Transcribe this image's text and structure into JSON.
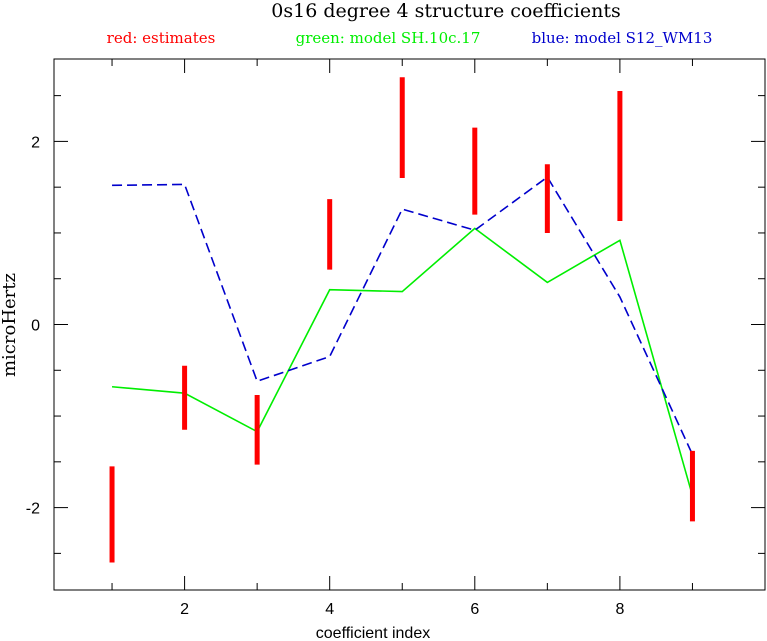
{
  "chart_data": {
    "type": "line",
    "title": "0s16 degree 4 structure coefficients",
    "xlabel": "coefficient index",
    "ylabel": "microHertz",
    "xlim": [
      0.2,
      10
    ],
    "ylim": [
      -2.9,
      2.9
    ],
    "x_major_ticks": [
      2,
      4,
      6,
      8
    ],
    "y_major_ticks": [
      -2,
      0,
      2
    ],
    "x_tick_labels": [
      "2",
      "4",
      "6",
      "8"
    ],
    "y_tick_labels": [
      "-2",
      "0",
      "2"
    ],
    "legend": [
      {
        "label": "red: estimates",
        "color": "#ff0000"
      },
      {
        "label": "green: model SH.10c.17",
        "color": "#00ee00"
      },
      {
        "label": "blue: model S12_WM13",
        "color": "#0000cc"
      }
    ],
    "estimates": {
      "color": "#ff0000",
      "style": "error-bar",
      "ranges": [
        {
          "x": 1,
          "low": -2.6,
          "high": -1.55
        },
        {
          "x": 2,
          "low": -1.15,
          "high": -0.45
        },
        {
          "x": 3,
          "low": -1.53,
          "high": -0.77
        },
        {
          "x": 4,
          "low": 0.6,
          "high": 1.37
        },
        {
          "x": 5,
          "low": 1.6,
          "high": 2.7
        },
        {
          "x": 6,
          "low": 1.2,
          "high": 2.15
        },
        {
          "x": 7,
          "low": 1.0,
          "high": 1.75
        },
        {
          "x": 8,
          "low": 1.13,
          "high": 2.55
        },
        {
          "x": 9,
          "low": -2.15,
          "high": -1.38
        }
      ]
    },
    "series": [
      {
        "name": "model SH.10c.17",
        "color": "#00ee00",
        "dash": "solid",
        "x": [
          1,
          2,
          3,
          4,
          5,
          6,
          7,
          8,
          9
        ],
        "values": [
          -0.68,
          -0.75,
          -1.17,
          0.38,
          0.36,
          1.05,
          0.46,
          0.92,
          -1.87
        ]
      },
      {
        "name": "model S12_WM13",
        "color": "#0000cc",
        "dash": "dashed",
        "x": [
          1,
          2,
          3,
          4,
          5,
          6,
          7,
          8,
          9
        ],
        "values": [
          1.52,
          1.53,
          -0.62,
          -0.35,
          1.26,
          1.03,
          1.61,
          0.3,
          -1.42
        ]
      }
    ]
  }
}
